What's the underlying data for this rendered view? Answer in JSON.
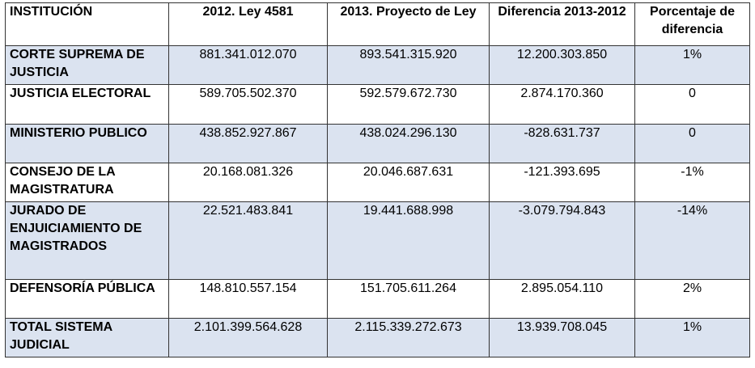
{
  "table": {
    "headers": [
      "INSTITUCIÓN",
      "2012. Ley 4581",
      "2013. Proyecto de Ley",
      "Diferencia 2013-2012",
      "Porcentaje de diferencia"
    ],
    "rows": [
      {
        "institucion": "CORTE SUPREMA DE JUSTICIA",
        "y2012": "881.341.012.070",
        "y2013": "893.541.315.920",
        "diferencia": "12.200.303.850",
        "porcentaje": "1%"
      },
      {
        "institucion": "JUSTICIA ELECTORAL",
        "y2012": "589.705.502.370",
        "y2013": "592.579.672.730",
        "diferencia": "2.874.170.360",
        "porcentaje": "0"
      },
      {
        "institucion": "MINISTERIO PUBLICO",
        "y2012": "438.852.927.867",
        "y2013": "438.024.296.130",
        "diferencia": "-828.631.737",
        "porcentaje": "0"
      },
      {
        "institucion": "CONSEJO DE LA MAGISTRATURA",
        "y2012": "20.168.081.326",
        "y2013": "20.046.687.631",
        "diferencia": "-121.393.695",
        "porcentaje": "-1%"
      },
      {
        "institucion": "JURADO DE ENJUICIAMIENTO DE MAGISTRADOS",
        "y2012": "22.521.483.841",
        "y2013": "19.441.688.998",
        "diferencia": "-3.079.794.843",
        "porcentaje": "-14%"
      },
      {
        "institucion": "DEFENSORÍA PÚBLICA",
        "y2012": "148.810.557.154",
        "y2013": "151.705.611.264",
        "diferencia": "2.895.054.110",
        "porcentaje": "2%"
      },
      {
        "institucion": "TOTAL SISTEMA JUDICIAL",
        "y2012": "2.101.399.564.628",
        "y2013": "2.115.339.272.673",
        "diferencia": "13.939.708.045",
        "porcentaje": "1%"
      }
    ]
  }
}
